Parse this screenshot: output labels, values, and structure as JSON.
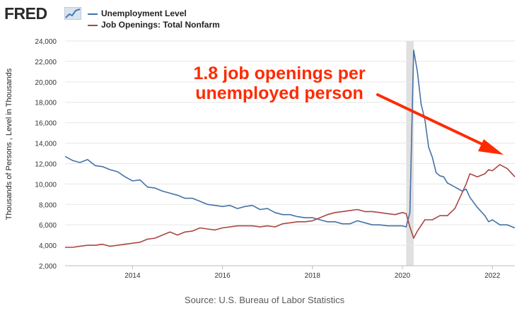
{
  "logo": {
    "text": "FRED",
    "icon": "fred-chart-icon"
  },
  "legend": [
    {
      "label": "Unemployment Level",
      "color": "#4572a7"
    },
    {
      "label": "Job Openings: Total Nonfarm",
      "color": "#aa4643"
    }
  ],
  "annotation": {
    "line1": "1.8 job openings per",
    "line2": "unemployed person",
    "color": "#ff2a00"
  },
  "source": "Source: U.S. Bureau of Labor Statistics",
  "chart_data": {
    "type": "line",
    "ylabel": "Thousands of Persons , Level in Thousands",
    "xlabel": "",
    "ylim": [
      2000,
      24000
    ],
    "yticks": [
      2000,
      4000,
      6000,
      8000,
      10000,
      12000,
      14000,
      16000,
      18000,
      20000,
      22000,
      24000
    ],
    "ytick_labels": [
      "2,000",
      "4,000",
      "6,000",
      "8,000",
      "10,000",
      "12,000",
      "14,000",
      "16,000",
      "18,000",
      "20,000",
      "22,000",
      "24,000"
    ],
    "xlim": [
      "2012-07",
      "2022-07"
    ],
    "xticks": [
      "2014",
      "2016",
      "2018",
      "2020",
      "2022"
    ],
    "recession": [
      "2020-02",
      "2020-04"
    ],
    "grid": "horizontal",
    "series": [
      {
        "name": "Unemployment Level",
        "color": "#4572a7",
        "points": [
          [
            "2012-07",
            12700
          ],
          [
            "2012-09",
            12300
          ],
          [
            "2012-11",
            12100
          ],
          [
            "2013-01",
            12400
          ],
          [
            "2013-03",
            11800
          ],
          [
            "2013-05",
            11700
          ],
          [
            "2013-07",
            11400
          ],
          [
            "2013-09",
            11200
          ],
          [
            "2013-11",
            10700
          ],
          [
            "2014-01",
            10300
          ],
          [
            "2014-03",
            10400
          ],
          [
            "2014-05",
            9700
          ],
          [
            "2014-07",
            9600
          ],
          [
            "2014-09",
            9300
          ],
          [
            "2014-11",
            9100
          ],
          [
            "2015-01",
            8900
          ],
          [
            "2015-03",
            8600
          ],
          [
            "2015-05",
            8600
          ],
          [
            "2015-07",
            8300
          ],
          [
            "2015-09",
            8000
          ],
          [
            "2015-11",
            7900
          ],
          [
            "2016-01",
            7800
          ],
          [
            "2016-03",
            7900
          ],
          [
            "2016-05",
            7600
          ],
          [
            "2016-07",
            7800
          ],
          [
            "2016-09",
            7900
          ],
          [
            "2016-11",
            7500
          ],
          [
            "2017-01",
            7600
          ],
          [
            "2017-03",
            7200
          ],
          [
            "2017-05",
            7000
          ],
          [
            "2017-07",
            7000
          ],
          [
            "2017-09",
            6800
          ],
          [
            "2017-11",
            6700
          ],
          [
            "2018-01",
            6700
          ],
          [
            "2018-03",
            6500
          ],
          [
            "2018-05",
            6300
          ],
          [
            "2018-07",
            6300
          ],
          [
            "2018-09",
            6100
          ],
          [
            "2018-11",
            6100
          ],
          [
            "2019-01",
            6400
          ],
          [
            "2019-03",
            6200
          ],
          [
            "2019-05",
            6000
          ],
          [
            "2019-07",
            6000
          ],
          [
            "2019-09",
            5900
          ],
          [
            "2019-11",
            5900
          ],
          [
            "2020-01",
            5900
          ],
          [
            "2020-02",
            5800
          ],
          [
            "2020-03",
            7200
          ],
          [
            "2020-04",
            23100
          ],
          [
            "2020-05",
            21000
          ],
          [
            "2020-06",
            17800
          ],
          [
            "2020-07",
            16300
          ],
          [
            "2020-08",
            13600
          ],
          [
            "2020-09",
            12600
          ],
          [
            "2020-10",
            11100
          ],
          [
            "2020-11",
            10800
          ],
          [
            "2020-12",
            10700
          ],
          [
            "2021-01",
            10100
          ],
          [
            "2021-03",
            9700
          ],
          [
            "2021-05",
            9300
          ],
          [
            "2021-06",
            9500
          ],
          [
            "2021-07",
            8700
          ],
          [
            "2021-09",
            7700
          ],
          [
            "2021-11",
            6900
          ],
          [
            "2021-12",
            6300
          ],
          [
            "2022-01",
            6500
          ],
          [
            "2022-03",
            6000
          ],
          [
            "2022-05",
            6000
          ],
          [
            "2022-07",
            5700
          ]
        ]
      },
      {
        "name": "Job Openings: Total Nonfarm",
        "color": "#aa4643",
        "points": [
          [
            "2012-07",
            3800
          ],
          [
            "2012-09",
            3800
          ],
          [
            "2012-11",
            3900
          ],
          [
            "2013-01",
            4000
          ],
          [
            "2013-03",
            4000
          ],
          [
            "2013-05",
            4100
          ],
          [
            "2013-07",
            3900
          ],
          [
            "2013-09",
            4000
          ],
          [
            "2013-11",
            4100
          ],
          [
            "2014-01",
            4200
          ],
          [
            "2014-03",
            4300
          ],
          [
            "2014-05",
            4600
          ],
          [
            "2014-07",
            4700
          ],
          [
            "2014-09",
            5000
          ],
          [
            "2014-11",
            5300
          ],
          [
            "2015-01",
            5000
          ],
          [
            "2015-03",
            5300
          ],
          [
            "2015-05",
            5400
          ],
          [
            "2015-07",
            5700
          ],
          [
            "2015-09",
            5600
          ],
          [
            "2015-11",
            5500
          ],
          [
            "2016-01",
            5700
          ],
          [
            "2016-03",
            5800
          ],
          [
            "2016-05",
            5900
          ],
          [
            "2016-07",
            5900
          ],
          [
            "2016-09",
            5900
          ],
          [
            "2016-11",
            5800
          ],
          [
            "2017-01",
            5900
          ],
          [
            "2017-03",
            5800
          ],
          [
            "2017-05",
            6100
          ],
          [
            "2017-07",
            6200
          ],
          [
            "2017-09",
            6300
          ],
          [
            "2017-11",
            6300
          ],
          [
            "2018-01",
            6400
          ],
          [
            "2018-03",
            6700
          ],
          [
            "2018-05",
            7000
          ],
          [
            "2018-07",
            7200
          ],
          [
            "2018-09",
            7300
          ],
          [
            "2018-11",
            7400
          ],
          [
            "2019-01",
            7500
          ],
          [
            "2019-03",
            7300
          ],
          [
            "2019-05",
            7300
          ],
          [
            "2019-07",
            7200
          ],
          [
            "2019-09",
            7100
          ],
          [
            "2019-11",
            7000
          ],
          [
            "2020-01",
            7200
          ],
          [
            "2020-02",
            7100
          ],
          [
            "2020-03",
            5800
          ],
          [
            "2020-04",
            4700
          ],
          [
            "2020-05",
            5400
          ],
          [
            "2020-07",
            6500
          ],
          [
            "2020-09",
            6500
          ],
          [
            "2020-11",
            6900
          ],
          [
            "2021-01",
            6900
          ],
          [
            "2021-03",
            7600
          ],
          [
            "2021-05",
            9200
          ],
          [
            "2021-06",
            10000
          ],
          [
            "2021-07",
            11000
          ],
          [
            "2021-09",
            10700
          ],
          [
            "2021-11",
            11000
          ],
          [
            "2021-12",
            11400
          ],
          [
            "2022-01",
            11300
          ],
          [
            "2022-03",
            11900
          ],
          [
            "2022-05",
            11500
          ],
          [
            "2022-07",
            10700
          ]
        ]
      }
    ]
  }
}
